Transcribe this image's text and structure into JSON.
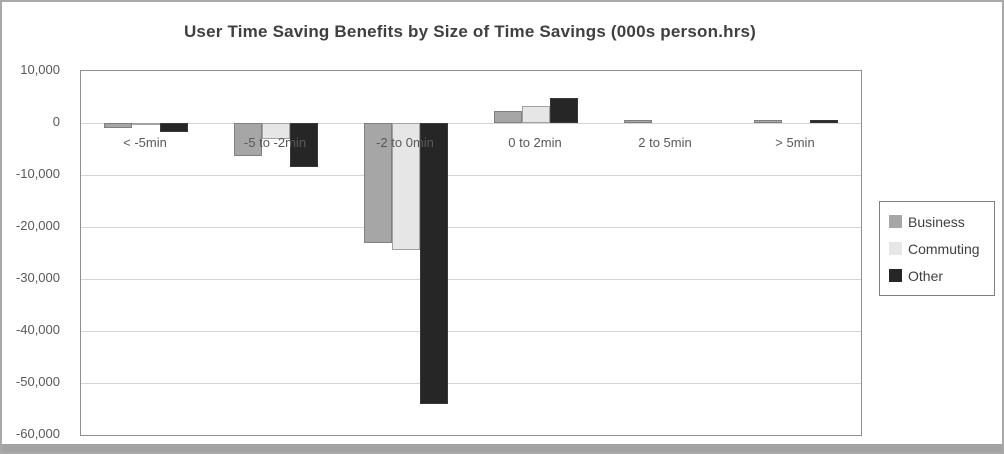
{
  "frame": {
    "background": "#ffffff",
    "border_color": "#a9a9a9",
    "bottom_bar_color": "#a3a3a3"
  },
  "chart_data": {
    "type": "bar",
    "title": "User Time Saving Benefits by Size of Time Savings (000s person.hrs)",
    "categories": [
      "< -5min",
      "-5 to -2min",
      "-2 to 0min",
      "0 to 2min",
      "2 to 5min",
      "> 5min"
    ],
    "series": [
      {
        "name": "Business",
        "color": "#a6a6a6",
        "values": [
          -1000,
          -6300,
          -23000,
          2400,
          500,
          500
        ]
      },
      {
        "name": "Commuting",
        "color": "#e7e6e6",
        "values": [
          -100,
          -3000,
          -24500,
          3300,
          0,
          0
        ]
      },
      {
        "name": "Other",
        "color": "#262626",
        "values": [
          -1800,
          -8500,
          -54000,
          4900,
          0,
          500
        ]
      }
    ],
    "xlabel": "",
    "ylabel": "",
    "ylim": [
      -60000,
      10000
    ],
    "yticks": [
      10000,
      0,
      -10000,
      -20000,
      -30000,
      -40000,
      -50000,
      -60000
    ],
    "ytick_labels": [
      "10,000",
      "0",
      "-10,000",
      "-20,000",
      "-30,000",
      "-40,000",
      "-50,000",
      "-60,000"
    ],
    "grid": true,
    "legend_position": "right",
    "colors": {
      "title_text": "#404040",
      "axis_text": "#595959",
      "gridline": "#d4d4d4",
      "plot_border": "#8f8f8f",
      "legend_border": "#7f7f7f",
      "legend_text": "#404040"
    }
  }
}
